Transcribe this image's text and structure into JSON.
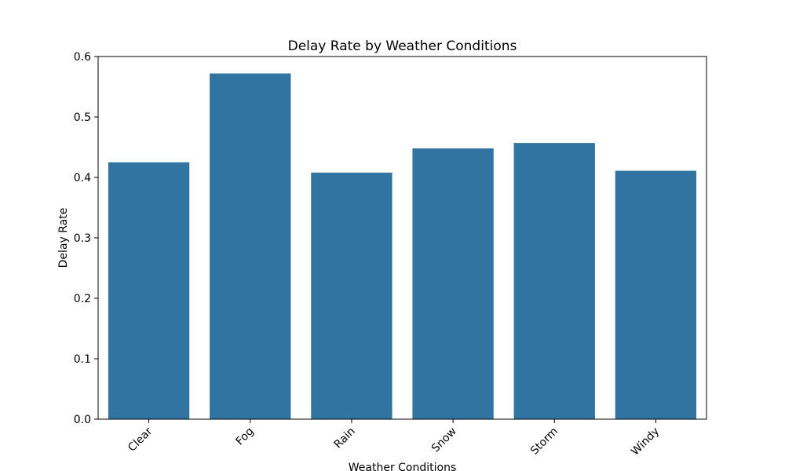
{
  "chart_data": {
    "type": "bar",
    "title": "Delay Rate by Weather Conditions",
    "xlabel": "Weather Conditions",
    "ylabel": "Delay Rate",
    "categories": [
      "Clear",
      "Fog",
      "Rain",
      "Snow",
      "Storm",
      "Windy"
    ],
    "values": [
      0.425,
      0.572,
      0.408,
      0.448,
      0.457,
      0.411
    ],
    "ylim": [
      0,
      0.6
    ],
    "yticks": [
      0.0,
      0.1,
      0.2,
      0.3,
      0.4,
      0.5,
      0.6
    ],
    "ytick_labels": [
      "0.0",
      "0.1",
      "0.2",
      "0.3",
      "0.4",
      "0.5",
      "0.6"
    ],
    "xtick_rotation": 45,
    "grid": false,
    "legend": "none",
    "colors": {
      "bar": "#3274a1",
      "axes": "#000000",
      "background": "#ffffff"
    }
  }
}
